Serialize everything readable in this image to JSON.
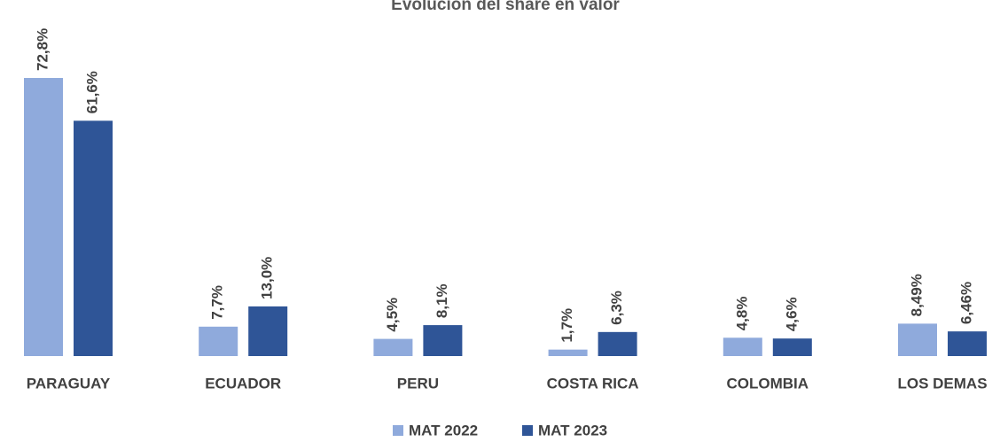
{
  "chart_data": {
    "type": "bar",
    "title": "Evolución del share en valor",
    "categories": [
      "PARAGUAY",
      "ECUADOR",
      "PERU",
      "COSTA RICA",
      "COLOMBIA",
      "LOS DEMAS"
    ],
    "series": [
      {
        "name": "MAT 2022",
        "color": "#8faadc",
        "values": [
          72.8,
          7.7,
          4.5,
          1.7,
          4.8,
          8.49
        ],
        "value_labels": [
          "72,8%",
          "7,7%",
          "4,5%",
          "1,7%",
          "4,8%",
          "8,49%"
        ]
      },
      {
        "name": "MAT 2023",
        "color": "#2f5597",
        "values": [
          61.6,
          13.0,
          8.1,
          6.3,
          4.6,
          6.46
        ],
        "value_labels": [
          "61,6%",
          "13,0%",
          "8,1%",
          "6,3%",
          "4,6%",
          "6,46%"
        ]
      }
    ],
    "legend": "bottom"
  }
}
